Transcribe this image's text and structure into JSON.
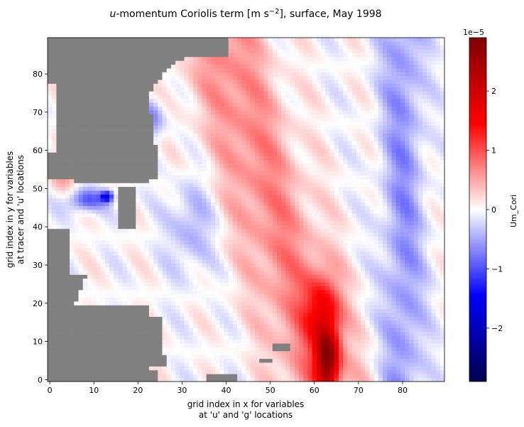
{
  "chart_data": {
    "type": "heatmap",
    "title_prefix": "u",
    "title_rest": "-momentum Coriolis term [m s",
    "title_sup": "−2",
    "title_suffix": "], surface, May 1998",
    "xlabel_line1": "grid index in x for variables",
    "xlabel_line2": "at 'u' and 'g' locations",
    "ylabel_line1": "grid index in y for variables",
    "ylabel_line2": "at tracer and 'u' locations",
    "xlim": [
      -0.5,
      89.5
    ],
    "ylim": [
      -0.5,
      89.5
    ],
    "xticks": [
      0,
      10,
      20,
      30,
      40,
      50,
      60,
      70,
      80
    ],
    "yticks": [
      0,
      10,
      20,
      30,
      40,
      50,
      60,
      70,
      80
    ],
    "colormap": "seismic",
    "land_color": "#808080",
    "colorbar": {
      "label": "Um_Cori",
      "scale_label": "1e−5",
      "vmin": -2.9,
      "vmax": 2.9,
      "ticks": [
        -2,
        -1,
        0,
        1,
        2
      ],
      "tick_labels": [
        "−2",
        "−1",
        "0",
        "1",
        "2"
      ]
    },
    "field_units": "1e-5 m s^-2",
    "features": [
      {
        "name": "broad positive band along coast",
        "approx_value": 0.7
      },
      {
        "name": "strong positive core near x=62-65, y=0-15",
        "approx_value": 2.0
      },
      {
        "name": "positive/negative dipole near x=17, y=45",
        "approx_value": 2.8
      },
      {
        "name": "negative band near eastern boundary x=75-85",
        "approx_value": -0.6
      }
    ]
  }
}
